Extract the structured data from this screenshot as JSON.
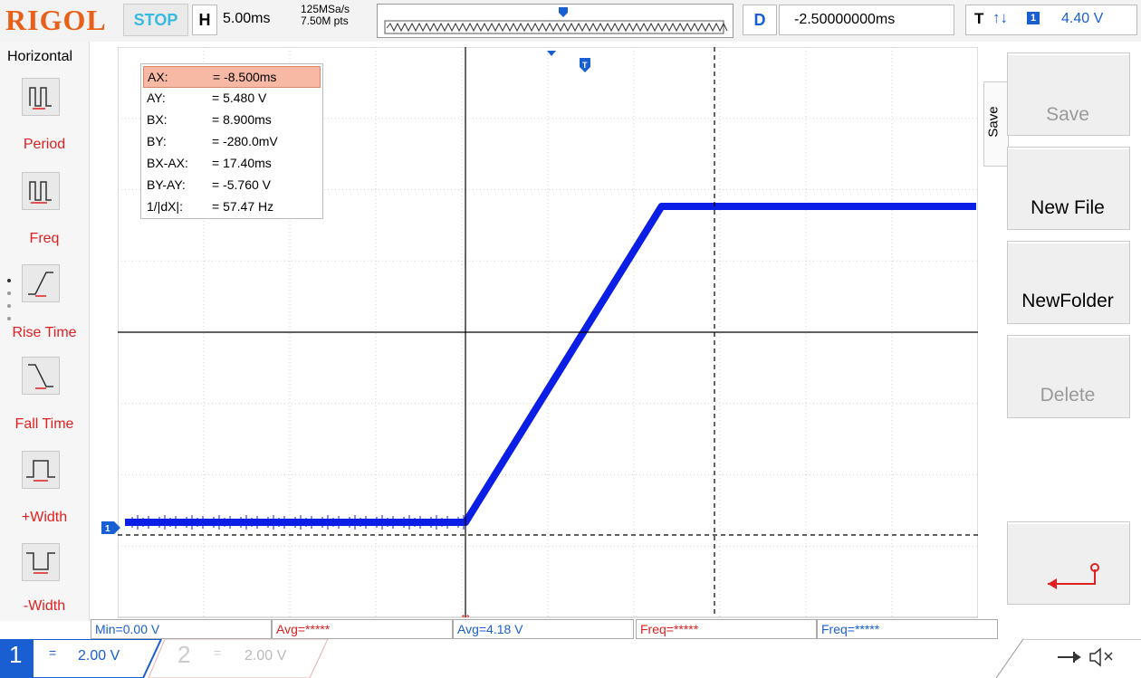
{
  "topbar": {
    "logo": "RIGOL",
    "run_state": "STOP",
    "h_letter": "H",
    "h_scale": "5.00ms",
    "sample_rate": "125MSa/s",
    "memory_depth": "7.50M pts",
    "d_letter": "D",
    "delay": "-2.50000000ms",
    "trigger_letter": "T",
    "trigger_edge": "↑↓",
    "trigger_channel": "1",
    "trigger_level": "4.40 V"
  },
  "left_menu": {
    "title": "Horizontal",
    "items": [
      {
        "label": "Period"
      },
      {
        "label": "Freq"
      },
      {
        "label": "Rise Time"
      },
      {
        "label": "Fall Time"
      },
      {
        "label": "+Width"
      },
      {
        "label": "-Width"
      }
    ]
  },
  "cursor_table": {
    "rows": [
      {
        "name": "AX:",
        "value": "=  -8.500ms"
      },
      {
        "name": "AY:",
        "value": "=  5.480 V"
      },
      {
        "name": "BX:",
        "value": "=  8.900ms"
      },
      {
        "name": "BY:",
        "value": "=  -280.0mV"
      },
      {
        "name": "BX-AX:",
        "value": "=  17.40ms"
      },
      {
        "name": "BY-AY:",
        "value": "=  -5.760 V"
      },
      {
        "name": "1/|dX|:",
        "value": "=  57.47 Hz"
      }
    ]
  },
  "right_menu": {
    "tab_label": "Save",
    "buttons": [
      {
        "label": "Save"
      },
      {
        "label": "New File"
      },
      {
        "label": "NewFolder"
      },
      {
        "label": "Delete"
      },
      {
        "label": ""
      }
    ]
  },
  "measurements": [
    {
      "text": "Min=0.00 V",
      "color": "#1a5fd1"
    },
    {
      "text": "Avg=*****",
      "color": "#e02020"
    },
    {
      "text": "Avg=4.18 V",
      "color": "#1a5fd1"
    },
    {
      "text": "Freq=*****",
      "color": "#e02020"
    },
    {
      "text": "Freq=*****",
      "color": "#1a5fd1"
    }
  ],
  "channels": {
    "ch1": {
      "number": "1",
      "scale": "2.00 V",
      "coupling": "="
    },
    "ch2": {
      "number": "2",
      "scale": "2.00 V",
      "coupling": "="
    }
  },
  "colors": {
    "trace": "#0a1ee6",
    "accent_blue": "#1a5fd1",
    "menu_red": "#e02020",
    "cursor_highlight": "#f7b9a3",
    "logo": "#e8601a"
  },
  "waveform": {
    "low_level_v": 0.0,
    "high_level_v": 5.48,
    "rise_start_ms": 0.0,
    "rise_end_ms": 13.7
  }
}
